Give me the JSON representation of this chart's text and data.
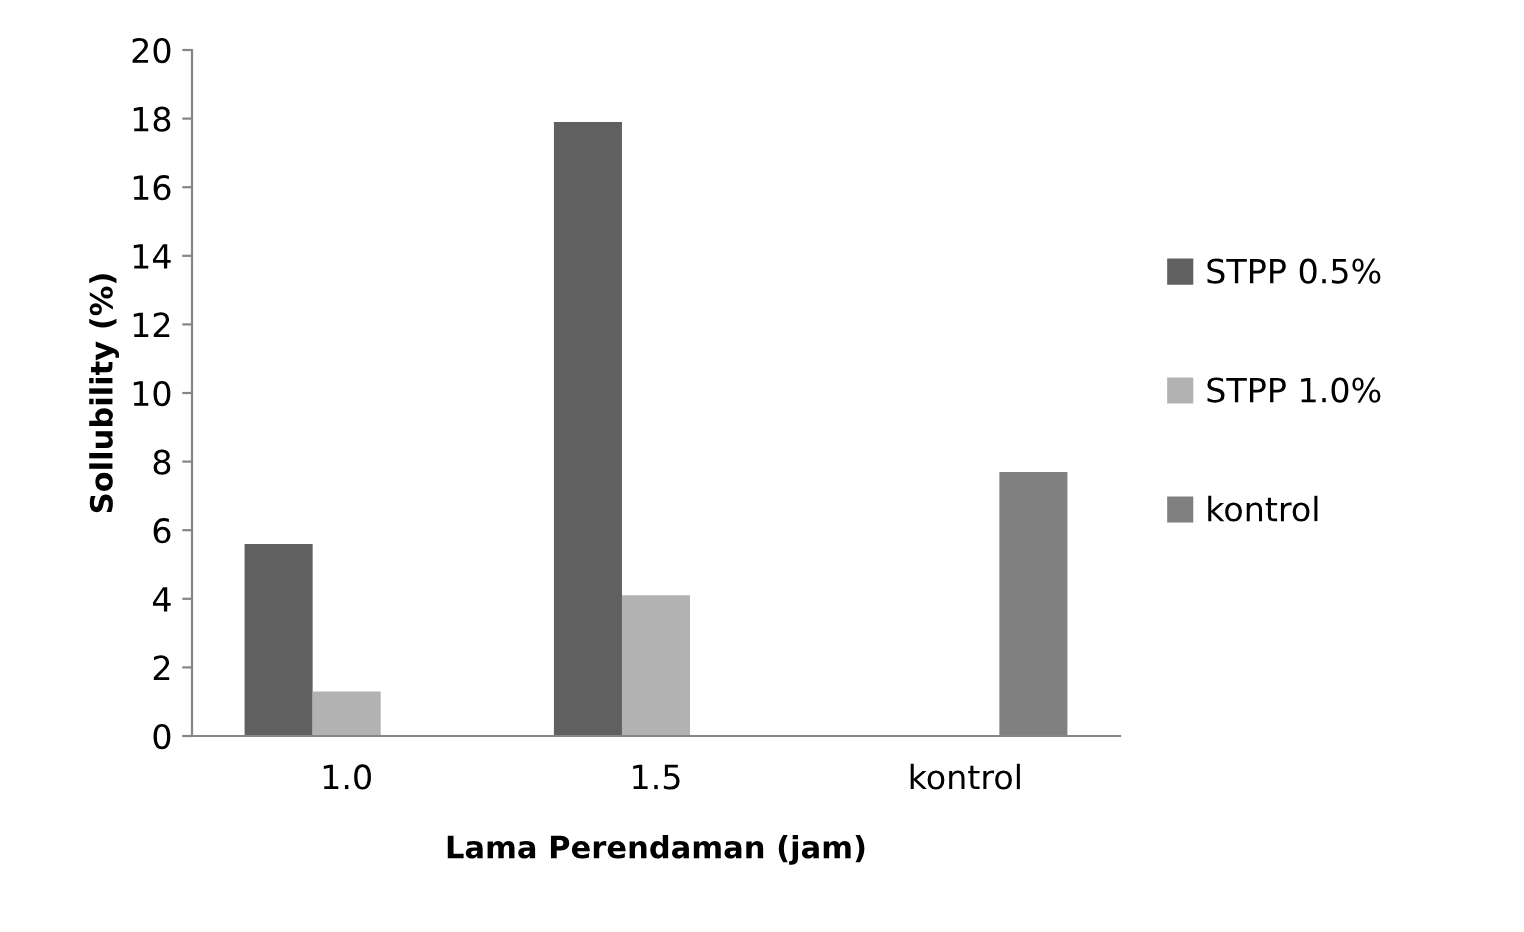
{
  "chart_data": {
    "type": "bar",
    "xlabel": "Lama Perendaman (jam)",
    "ylabel": "Sollubility (%)",
    "categories": [
      "1.0",
      "1.5",
      "kontrol"
    ],
    "series": [
      {
        "name": "STPP 0.5%",
        "color": "#606060",
        "values": [
          5.6,
          17.9,
          null
        ]
      },
      {
        "name": "STPP 1.0%",
        "color": "#b2b2b2",
        "values": [
          1.3,
          4.1,
          null
        ]
      },
      {
        "name": "kontrol",
        "color": "#808080",
        "values": [
          null,
          null,
          7.7
        ]
      }
    ],
    "ylim": [
      0,
      20
    ],
    "yticks": [
      0,
      2,
      4,
      6,
      8,
      10,
      12,
      14,
      16,
      18,
      20
    ],
    "grid": false,
    "legend": "right"
  }
}
